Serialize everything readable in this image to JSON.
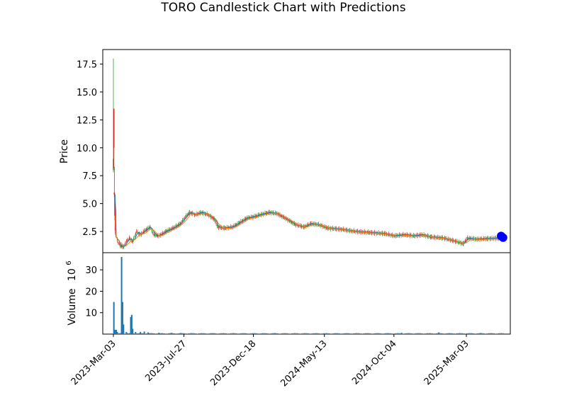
{
  "chart_data": {
    "type": "candlestick",
    "title": "TORO Candlestick Chart with Predictions",
    "price_panel": {
      "ylabel": "Price",
      "ylim": [
        0.6,
        18.8
      ],
      "yticks": [
        2.5,
        5.0,
        7.5,
        10.0,
        12.5,
        15.0,
        17.5
      ],
      "ytick_labels": [
        "2.5",
        "5.0",
        "7.5",
        "10.0",
        "12.5",
        "15.0",
        "17.5"
      ],
      "colors": {
        "up": "#2ca02c",
        "down": "#d62728",
        "ma_short": "#1f77b4",
        "ma_long": "#ff7f0e",
        "prediction": "#0000ff"
      },
      "early_candles": [
        {
          "date": "2023-03-03",
          "open": 8.0,
          "high": 18.0,
          "low": 7.8,
          "close": 9.0
        },
        {
          "date": "2023-03-04",
          "open": 13.5,
          "high": 13.5,
          "low": 8.2,
          "close": 10.0
        },
        {
          "date": "2023-03-05",
          "open": 6.0,
          "high": 8.3,
          "low": 5.6,
          "close": 5.8
        },
        {
          "date": "2023-03-06",
          "open": 5.8,
          "high": 5.9,
          "low": 3.5,
          "close": 3.9
        },
        {
          "date": "2023-03-07",
          "open": 3.9,
          "high": 4.0,
          "low": 2.3,
          "close": 2.6
        },
        {
          "date": "2023-03-08",
          "open": 2.6,
          "high": 3.4,
          "low": 2.0,
          "close": 2.2
        }
      ],
      "close_path": [
        [
          "2023-03-09",
          2.0
        ],
        [
          "2023-03-13",
          1.5
        ],
        [
          "2023-03-18",
          1.2
        ],
        [
          "2023-03-24",
          1.1
        ],
        [
          "2023-03-30",
          1.6
        ],
        [
          "2023-04-05",
          1.9
        ],
        [
          "2023-04-12",
          1.6
        ],
        [
          "2023-04-20",
          2.5
        ],
        [
          "2023-04-28",
          2.2
        ],
        [
          "2023-05-08",
          2.6
        ],
        [
          "2023-05-18",
          2.9
        ],
        [
          "2023-05-26",
          2.2
        ],
        [
          "2023-06-05",
          2.1
        ],
        [
          "2023-06-20",
          2.5
        ],
        [
          "2023-07-05",
          2.8
        ],
        [
          "2023-07-20",
          3.2
        ],
        [
          "2023-07-30",
          3.8
        ],
        [
          "2023-08-08",
          4.2
        ],
        [
          "2023-08-20",
          4.0
        ],
        [
          "2023-09-01",
          4.2
        ],
        [
          "2023-09-15",
          4.0
        ],
        [
          "2023-09-28",
          3.6
        ],
        [
          "2023-10-05",
          2.9
        ],
        [
          "2023-10-20",
          2.8
        ],
        [
          "2023-11-05",
          2.9
        ],
        [
          "2023-11-20",
          3.3
        ],
        [
          "2023-12-05",
          3.7
        ],
        [
          "2023-12-18",
          3.8
        ],
        [
          "2024-01-01",
          4.0
        ],
        [
          "2024-01-20",
          4.2
        ],
        [
          "2024-02-05",
          4.1
        ],
        [
          "2024-02-25",
          3.6
        ],
        [
          "2024-03-15",
          3.1
        ],
        [
          "2024-04-01",
          2.9
        ],
        [
          "2024-04-15",
          3.2
        ],
        [
          "2024-05-01",
          3.1
        ],
        [
          "2024-05-20",
          2.8
        ],
        [
          "2024-06-15",
          2.7
        ],
        [
          "2024-07-15",
          2.5
        ],
        [
          "2024-08-15",
          2.4
        ],
        [
          "2024-09-15",
          2.3
        ],
        [
          "2024-10-05",
          2.1
        ],
        [
          "2024-10-25",
          2.2
        ],
        [
          "2024-11-15",
          2.1
        ],
        [
          "2024-12-01",
          2.2
        ],
        [
          "2024-12-20",
          2.0
        ],
        [
          "2025-01-15",
          1.9
        ],
        [
          "2025-02-10",
          1.6
        ],
        [
          "2025-02-25",
          1.4
        ],
        [
          "2025-03-05",
          1.9
        ],
        [
          "2025-03-25",
          1.8
        ],
        [
          "2025-04-15",
          1.85
        ],
        [
          "2025-05-10",
          1.9
        ]
      ],
      "predictions": [
        {
          "date": "2025-05-14",
          "value": 2.1
        },
        {
          "date": "2025-05-18",
          "value": 1.95
        }
      ]
    },
    "volume_panel": {
      "ylabel": "Volume  10^6",
      "ylabel_main": "Volume",
      "ylabel_multiplier_base": "10",
      "ylabel_multiplier_exp": "6",
      "ylim": [
        0,
        38
      ],
      "yticks": [
        10,
        20,
        30
      ],
      "ytick_labels": [
        "10",
        "20",
        "30"
      ],
      "color": "#1f77b4",
      "bars": [
        [
          "2023-03-04",
          15.0
        ],
        [
          "2023-03-06",
          2.0
        ],
        [
          "2023-03-07",
          1.5
        ],
        [
          "2023-03-09",
          2.0
        ],
        [
          "2023-03-11",
          1.0
        ],
        [
          "2023-03-20",
          36.0
        ],
        [
          "2023-03-22",
          15.0
        ],
        [
          "2023-03-24",
          4.5
        ],
        [
          "2023-03-30",
          1.0
        ],
        [
          "2023-04-08",
          8.0
        ],
        [
          "2023-04-10",
          9.0
        ],
        [
          "2023-04-12",
          2.5
        ],
        [
          "2023-04-18",
          1.0
        ],
        [
          "2023-04-28",
          1.0
        ],
        [
          "2023-05-06",
          1.2
        ],
        [
          "2023-05-14",
          0.8
        ],
        [
          "2023-06-05",
          0.6
        ],
        [
          "2023-07-01",
          0.6
        ],
        [
          "2023-07-20",
          0.5
        ],
        [
          "2024-02-01",
          0.4
        ],
        [
          "2024-10-20",
          0.6
        ],
        [
          "2025-01-05",
          0.8
        ],
        [
          "2025-04-01",
          0.5
        ]
      ]
    },
    "x_axis": {
      "range": [
        "2023-02-09",
        "2025-06-02"
      ],
      "ticks": [
        "2023-03-03",
        "2023-07-27",
        "2023-12-18",
        "2024-05-13",
        "2024-10-04",
        "2025-03-03"
      ],
      "tick_labels": [
        "2023-Mar-03",
        "2023-Jul-27",
        "2023-Dec-18",
        "2024-May-13",
        "2024-Oct-04",
        "2025-Mar-03"
      ]
    }
  }
}
